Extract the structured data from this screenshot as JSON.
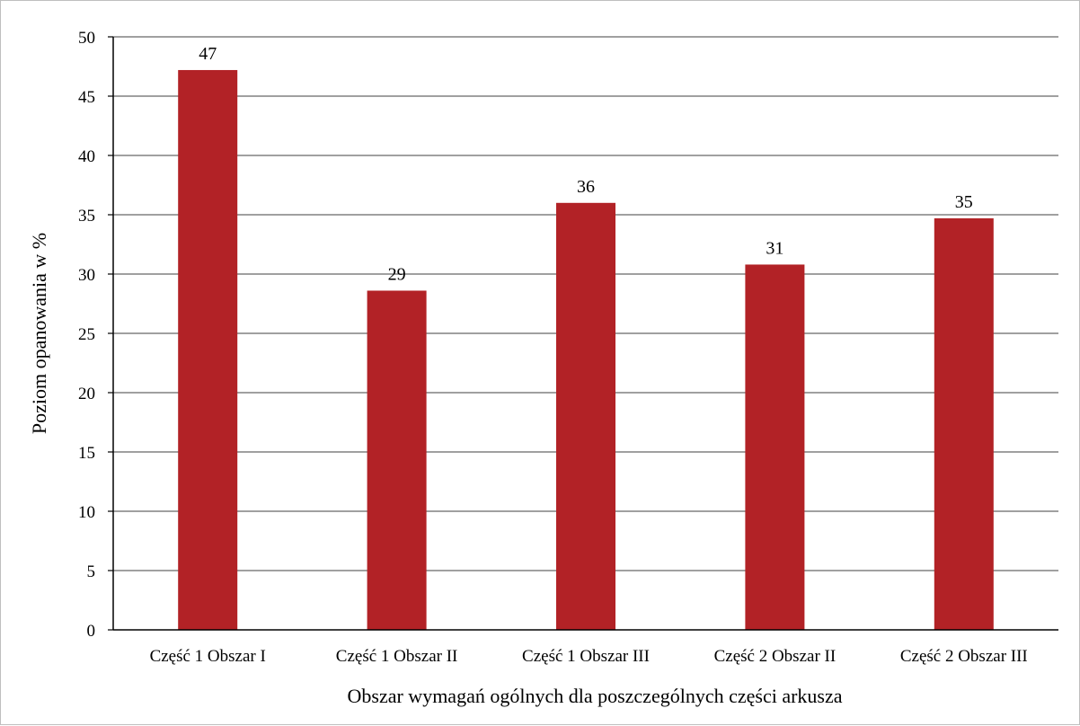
{
  "chart_data": {
    "type": "bar",
    "categories": [
      "Część 1 Obszar I",
      "Część 1 Obszar II",
      "Część 1 Obszar III",
      "Część 2 Obszar II",
      "Część 2 Obszar III"
    ],
    "values": [
      47.2,
      28.6,
      36.0,
      30.8,
      34.7
    ],
    "data_labels": [
      "47",
      "29",
      "36",
      "31",
      "35"
    ],
    "title": "",
    "xlabel": "Obszar wymagań ogólnych dla poszczególnych części arkusza",
    "ylabel": "Poziom opanowania w %",
    "ylim": [
      0,
      50
    ],
    "yticks": [
      0,
      5,
      10,
      15,
      20,
      25,
      30,
      35,
      40,
      45,
      50
    ],
    "grid": true,
    "legend": "none",
    "bar_color": "#b22226"
  }
}
